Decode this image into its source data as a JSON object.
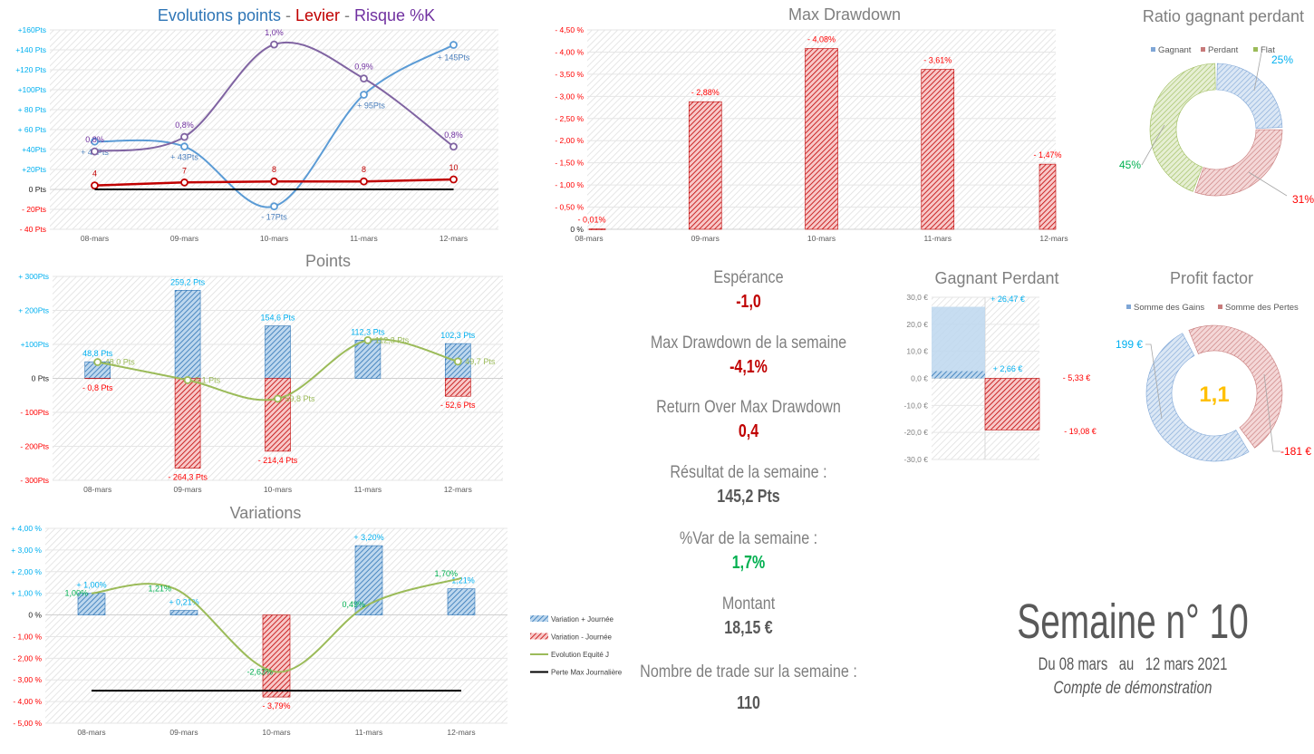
{
  "colors": {
    "blue": "#2e75b6",
    "blue_line": "#5b9bd5",
    "red": "#ff0000",
    "dark_red": "#c00000",
    "purple": "#8064a2",
    "green_line": "#9bbb59",
    "green_text": "#00b050",
    "cyan": "#00b0f0",
    "gray": "#7f7f7f",
    "yellow": "#ffc000"
  },
  "chart_data": [
    {
      "id": "evolution",
      "type": "line",
      "title_parts": [
        {
          "text": "Evolutions points",
          "color": "#2e75b6"
        },
        {
          "text": " - ",
          "color": "#7f7f7f"
        },
        {
          "text": "Levier",
          "color": "#c00000"
        },
        {
          "text": " - ",
          "color": "#7f7f7f"
        },
        {
          "text": "Risque %K",
          "color": "#7030a0"
        }
      ],
      "categories": [
        "08-mars",
        "09-mars",
        "10-mars",
        "11-mars",
        "12-mars"
      ],
      "ylim": [
        -40,
        160
      ],
      "yticks": [
        {
          "v": 160,
          "l": "+160Pts"
        },
        {
          "v": 140,
          "l": "+140 Pts"
        },
        {
          "v": 120,
          "l": "+120 Pts"
        },
        {
          "v": 100,
          "l": "+100Pts"
        },
        {
          "v": 80,
          "l": "+ 80 Pts"
        },
        {
          "v": 60,
          "l": "+ 60 Pts"
        },
        {
          "v": 40,
          "l": "+40Pts"
        },
        {
          "v": 20,
          "l": "+20Pts"
        },
        {
          "v": 0,
          "l": "0 Pts"
        },
        {
          "v": -20,
          "l": "- 20Pts"
        },
        {
          "v": -40,
          "l": "- 40 Pts"
        }
      ],
      "grid": true,
      "series": [
        {
          "key": "points",
          "values": [
            48,
            43,
            -17,
            95,
            145
          ],
          "labels": [
            "+ 48Pts",
            "+ 43Pts",
            "- 17Pts",
            "+ 95Pts",
            "+ 145Pts"
          ],
          "color": "#5b9bd5",
          "smooth": true
        },
        {
          "key": "levier",
          "values": [
            4,
            7,
            8,
            8,
            10
          ],
          "labels": [
            "4",
            "7",
            "8",
            "8",
            "10"
          ],
          "color": "#c00000",
          "smooth": false
        },
        {
          "key": "risque",
          "values": [
            0.78,
            0.81,
            1.0,
            0.93,
            0.79
          ],
          "labels": [
            "0,8%",
            "0,8%",
            "1,0%",
            "0,9%",
            "0,8%"
          ],
          "color": "#8064a2",
          "smooth": true,
          "secondary_ylim": [
            0.62,
            1.03
          ]
        },
        {
          "key": "zero",
          "values": [
            0,
            0,
            0,
            0,
            0
          ],
          "color": "#000000",
          "smooth": false
        }
      ]
    },
    {
      "id": "points",
      "type": "bar",
      "title": "Points",
      "categories": [
        "08-mars",
        "09-mars",
        "10-mars",
        "11-mars",
        "12-mars"
      ],
      "ylim": [
        -300,
        300
      ],
      "yticks": [
        {
          "v": 300,
          "l": "+ 300Pts"
        },
        {
          "v": 200,
          "l": "+ 200Pts"
        },
        {
          "v": 100,
          "l": "+100Pts"
        },
        {
          "v": 0,
          "l": "0 Pts"
        },
        {
          "v": -100,
          "l": "- 100Pts"
        },
        {
          "v": -200,
          "l": "- 200Pts"
        },
        {
          "v": -300,
          "l": "- 300Pts"
        }
      ],
      "grid": true,
      "series": [
        {
          "key": "gains",
          "values": [
            48.8,
            259.2,
            154.6,
            112.3,
            102.3
          ],
          "labels": [
            "48,8 Pts",
            "259,2 Pts",
            "154,6 Pts",
            "112,3 Pts",
            "102,3 Pts"
          ]
        },
        {
          "key": "pertes",
          "values": [
            -0.8,
            -264.3,
            -214.4,
            null,
            -52.6
          ],
          "labels": [
            "- 0,8 Pts",
            "- 264,3 Pts",
            "- 214,4 Pts",
            "",
            "- 52,6 Pts"
          ]
        },
        {
          "key": "net",
          "type": "line",
          "values": [
            48.0,
            -5.1,
            -59.8,
            112.3,
            49.7
          ],
          "labels": [
            "48,0 Pts",
            "5,1 Pts",
            "59,8 Pts",
            "112,3 Pts",
            "49,7 Pts"
          ]
        }
      ]
    },
    {
      "id": "variations",
      "type": "bar",
      "title": "Variations",
      "categories": [
        "08-mars",
        "09-mars",
        "10-mars",
        "11-mars",
        "12-mars"
      ],
      "ylim": [
        -5,
        4
      ],
      "yticks": [
        {
          "v": 4,
          "l": "+ 4,00 %"
        },
        {
          "v": 3,
          "l": "+ 3,00 %"
        },
        {
          "v": 2,
          "l": "+ 2,00 %"
        },
        {
          "v": 1,
          "l": "+ 1,00 %"
        },
        {
          "v": 0,
          "l": "0 %"
        },
        {
          "v": -1,
          "l": "- 1,00 %"
        },
        {
          "v": -2,
          "l": "- 2,00 %"
        },
        {
          "v": -3,
          "l": "- 3,00 %"
        },
        {
          "v": -4,
          "l": "- 4,00 %"
        },
        {
          "v": -5,
          "l": "- 5,00 %"
        }
      ],
      "grid": true,
      "series": [
        {
          "key": "pos",
          "name": "Variation + Journée",
          "values": [
            1.0,
            0.21,
            null,
            3.2,
            1.21
          ],
          "labels": [
            "+ 1,00%",
            "+ 0,21%",
            "",
            "+ 3,20%",
            "1,21%"
          ]
        },
        {
          "key": "neg",
          "name": "Variation - Journée",
          "values": [
            null,
            null,
            -3.79,
            null,
            null
          ],
          "labels": [
            "",
            "",
            "- 3,79%",
            "",
            ""
          ]
        },
        {
          "key": "equity",
          "name": "Evolution  Equité J",
          "type": "line",
          "values": [
            1.0,
            1.21,
            -2.63,
            0.49,
            1.7
          ],
          "labels": [
            "1,00%",
            "1,21%",
            "-2,63%",
            "0,49%",
            "1,70%"
          ]
        },
        {
          "key": "maxloss",
          "name": "Perte Max Journalière",
          "type": "line",
          "values": [
            -3.5,
            -3.5,
            -3.5,
            -3.5,
            -3.5
          ]
        }
      ],
      "legend": "right"
    },
    {
      "id": "mdd",
      "type": "bar",
      "title": "Max Drawdown",
      "categories": [
        "08-mars",
        "09-mars",
        "10-mars",
        "11-mars",
        "12-mars"
      ],
      "ylim": [
        0,
        -4.5
      ],
      "yticks": [
        {
          "v": -4.5,
          "l": "- 4,50 %"
        },
        {
          "v": -4,
          "l": "- 4,00 %"
        },
        {
          "v": -3.5,
          "l": "- 3,50 %"
        },
        {
          "v": -3,
          "l": "- 3,00 %"
        },
        {
          "v": -2.5,
          "l": "- 2,50 %"
        },
        {
          "v": -2,
          "l": "- 2,00 %"
        },
        {
          "v": -1.5,
          "l": "- 1,50 %"
        },
        {
          "v": -1,
          "l": "- 1,00 %"
        },
        {
          "v": -0.5,
          "l": "- 0,50 %"
        },
        {
          "v": 0,
          "l": "0 %"
        }
      ],
      "grid": true,
      "values": [
        -0.01,
        -2.88,
        -4.08,
        -3.61,
        -1.47
      ],
      "labels": [
        "- 0,01%",
        "- 2,88%",
        "- 4,08%",
        "- 3,61%",
        "- 1,47%"
      ]
    },
    {
      "id": "ratio",
      "type": "pie",
      "title": "Ratio gagnant perdant",
      "donut": true,
      "slices": [
        {
          "name": "Gagnant",
          "value": 25,
          "label": "25%"
        },
        {
          "name": "Perdant",
          "value": 31,
          "label": "31%"
        },
        {
          "name": "Flat",
          "value": 45,
          "label": "45%"
        }
      ],
      "legend": "top"
    },
    {
      "id": "gp",
      "type": "bar",
      "title": "Gagnant Perdant",
      "ylim": [
        -30,
        30
      ],
      "yticks": [
        {
          "v": 30,
          "l": "30,0 €"
        },
        {
          "v": 20,
          "l": "20,0 €"
        },
        {
          "v": 10,
          "l": "10,0 €"
        },
        {
          "v": 0,
          "l": "0,0 €"
        },
        {
          "v": -10,
          "l": "-10,0 €"
        },
        {
          "v": -20,
          "l": "-20,0 €"
        },
        {
          "v": -30,
          "l": "-30,0 €"
        }
      ],
      "grid": true,
      "bars": [
        {
          "key": "gain_max",
          "value": 26.47,
          "label": "+ 26,47 €"
        },
        {
          "key": "gain_moy",
          "value": 2.66,
          "label": "+ 2,66 €"
        },
        {
          "key": "perte_moy",
          "value": -5.33,
          "label": "- 5,33 €"
        },
        {
          "key": "perte_max",
          "value": -19.08,
          "label": "- 19,08 €"
        }
      ]
    },
    {
      "id": "profit",
      "type": "pie",
      "title": "Profit factor",
      "donut": true,
      "slices": [
        {
          "name": "Somme des Gains",
          "value": 199,
          "label": "199 €"
        },
        {
          "name": "Somme des Pertes",
          "value": -181,
          "label": "-181 €"
        }
      ],
      "center_label": "1,1",
      "legend": "top"
    }
  ],
  "kpis": [
    {
      "label": "Espérance",
      "value": "-1,0",
      "tone": "red"
    },
    {
      "label": "Max Drawdown de la semaine",
      "value": "-4,1%",
      "tone": "red"
    },
    {
      "label": "Return Over Max Drawdown",
      "value": "0,4",
      "tone": "red"
    },
    {
      "label": "Résultat de la semaine :",
      "value": "145,2 Pts",
      "tone": "dark"
    },
    {
      "label": "%Var de la semaine :",
      "value": "1,7%",
      "tone": "green"
    },
    {
      "label": "Montant",
      "value": "18,15 €",
      "tone": "dark"
    },
    {
      "label": "Nombre de trade sur la semaine :",
      "value": "110",
      "tone": "dark"
    }
  ],
  "week": {
    "title": "Semaine n° 10",
    "from": "Du 08 mars",
    "au": "au",
    "to": "12 mars 2021",
    "account": "Compte de démonstration"
  }
}
